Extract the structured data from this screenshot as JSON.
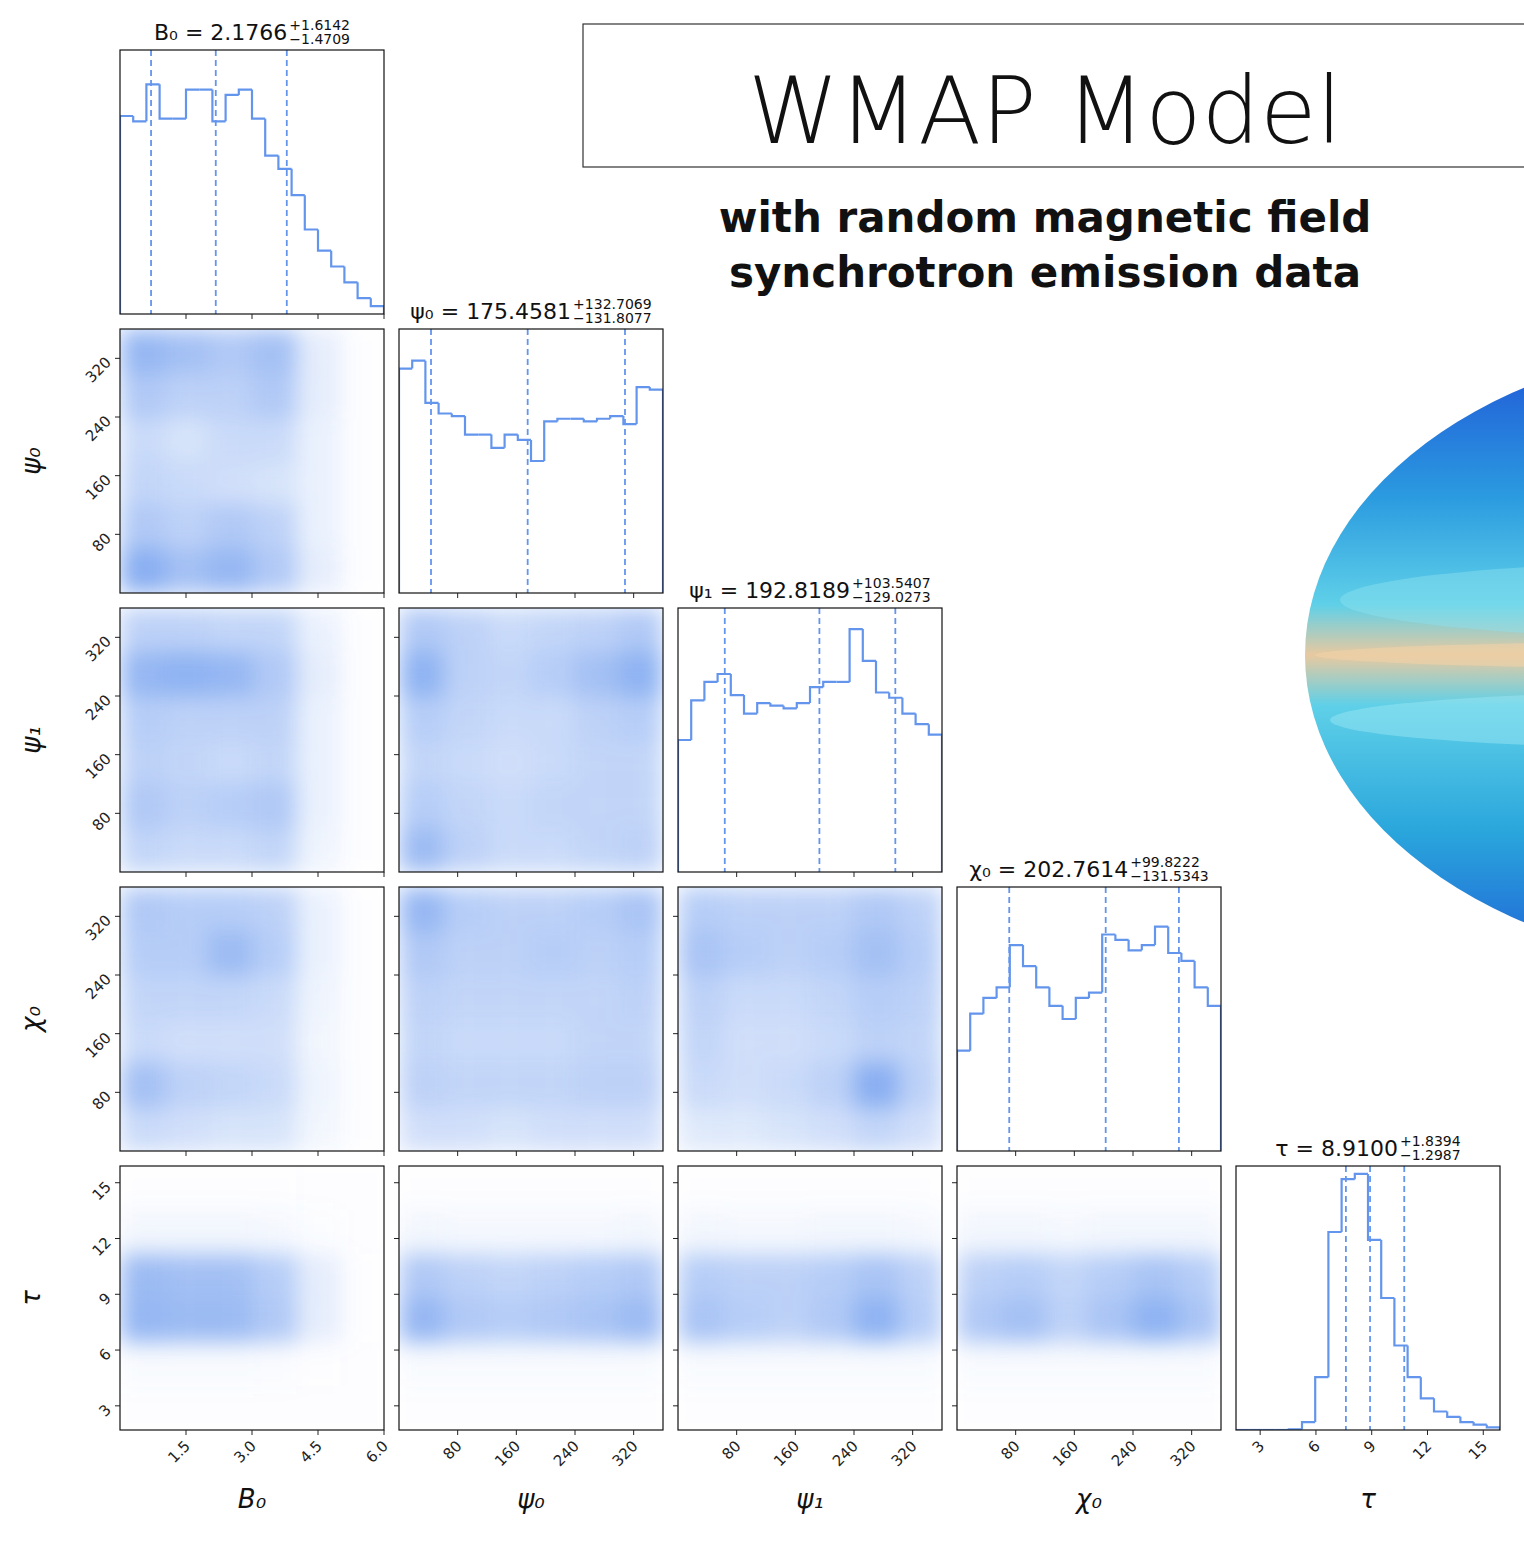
{
  "chart_data": {
    "type": "corner",
    "title": "WMAP Model",
    "subtitle": [
      "with random magnetic field",
      "synchrotron emission data"
    ],
    "color": "#6495ed",
    "parameters": [
      {
        "name": "B₀",
        "title": "B₀ =",
        "median": {
          "value": 2.1766,
          "label": "2.1766"
        },
        "err_plus": {
          "value": 1.6142,
          "label": "+1.6142"
        },
        "err_minus": {
          "value": -1.4709,
          "label": "−1.4709"
        },
        "lim": [
          0,
          6
        ],
        "ticks": [
          1.5,
          {
            "value": 3,
            "label": "3.0"
          },
          4.5,
          {
            "value": 6,
            "label": "6.0"
          }
        ],
        "bins": [
          0,
          0.3,
          0.6,
          0.9,
          1.2,
          1.5,
          1.8,
          2.1,
          2.4,
          2.7,
          3,
          3.3,
          3.6,
          3.9,
          4.2,
          4.5,
          4.8,
          5.1,
          5.4,
          5.7,
          6
        ],
        "counts": [
          0.75,
          0.73,
          0.87,
          0.74,
          0.74,
          0.85,
          0.85,
          0.73,
          0.83,
          0.85,
          0.74,
          0.6,
          0.55,
          0.45,
          0.32,
          0.24,
          0.18,
          0.12,
          0.06,
          0.03
        ],
        "ylim": [
          0,
          1
        ]
      },
      {
        "name": "ψ₀",
        "title": "ψ₀ =",
        "median": {
          "value": 175.4581,
          "label": "175.4581"
        },
        "err_plus": {
          "value": 132.7069,
          "label": "+132.7069"
        },
        "err_minus": {
          "value": -131.8077,
          "label": "−131.8077"
        },
        "lim": [
          0,
          360
        ],
        "ticks": [
          80,
          160,
          240,
          320
        ],
        "bins": [
          0,
          18,
          36,
          54,
          72,
          90,
          108,
          126,
          144,
          162,
          180,
          198,
          216,
          234,
          252,
          270,
          288,
          306,
          324,
          342,
          360
        ],
        "counts": [
          0.85,
          0.88,
          0.72,
          0.68,
          0.67,
          0.6,
          0.6,
          0.55,
          0.6,
          0.58,
          0.5,
          0.65,
          0.66,
          0.66,
          0.65,
          0.66,
          0.67,
          0.64,
          0.78,
          0.77
        ],
        "ylim": [
          0,
          1
        ]
      },
      {
        "name": "ψ₁",
        "title": "ψ₁ =",
        "median": {
          "value": 192.8189,
          "label": "192.8189"
        },
        "err_plus": {
          "value": 103.5407,
          "label": "+103.5407"
        },
        "err_minus": {
          "value": -129.0273,
          "label": "−129.0273"
        },
        "lim": [
          0,
          360
        ],
        "ticks": [
          80,
          160,
          240,
          320
        ],
        "bins": [
          0,
          18,
          36,
          54,
          72,
          90,
          108,
          126,
          144,
          162,
          180,
          198,
          216,
          234,
          252,
          270,
          288,
          306,
          324,
          342,
          360
        ],
        "counts": [
          0.5,
          0.65,
          0.72,
          0.75,
          0.67,
          0.6,
          0.64,
          0.63,
          0.62,
          0.64,
          0.7,
          0.72,
          0.72,
          0.92,
          0.8,
          0.68,
          0.66,
          0.6,
          0.56,
          0.52
        ],
        "ylim": [
          0,
          1
        ]
      },
      {
        "name": "χ₀",
        "title": "χ₀ =",
        "median": {
          "value": 202.7614,
          "label": "202.7614"
        },
        "err_plus": {
          "value": 99.8222,
          "label": "+99.8222"
        },
        "err_minus": {
          "value": -131.5343,
          "label": "−131.5343"
        },
        "lim": [
          0,
          360
        ],
        "ticks": [
          80,
          160,
          240,
          320
        ],
        "bins": [
          0,
          18,
          36,
          54,
          72,
          90,
          108,
          126,
          144,
          162,
          180,
          198,
          216,
          234,
          252,
          270,
          288,
          306,
          324,
          342,
          360
        ],
        "counts": [
          0.38,
          0.52,
          0.58,
          0.62,
          0.78,
          0.7,
          0.62,
          0.55,
          0.5,
          0.58,
          0.6,
          0.82,
          0.8,
          0.76,
          0.78,
          0.85,
          0.75,
          0.72,
          0.62,
          0.55
        ],
        "ylim": [
          0,
          1
        ]
      },
      {
        "name": "τ",
        "title": "τ =",
        "median": {
          "value": 8.91,
          "label": "8.9100"
        },
        "err_plus": {
          "value": 1.8394,
          "label": "+1.8394"
        },
        "err_minus": {
          "value": -1.2987,
          "label": "−1.2987"
        },
        "lim": [
          1.7,
          15.9
        ],
        "ticks": [
          3,
          6,
          9,
          12,
          15
        ],
        "bins": [
          1.7,
          2.41,
          3.12,
          3.83,
          4.54,
          5.25,
          5.96,
          6.67,
          7.38,
          8.09,
          8.8,
          9.51,
          10.22,
          10.93,
          11.64,
          12.35,
          13.06,
          13.77,
          14.48,
          15.19,
          15.9
        ],
        "counts": [
          0,
          0,
          0,
          0,
          0.002,
          0.03,
          0.2,
          0.75,
          0.95,
          0.97,
          0.72,
          0.5,
          0.32,
          0.2,
          0.12,
          0.07,
          0.05,
          0.03,
          0.02,
          0.01
        ],
        "ylim": [
          0,
          1
        ]
      }
    ],
    "densities": [
      [],
      [
        [
          [
            0.8,
            0.7,
            0.6,
            0.7,
            0.2,
            0.02
          ],
          [
            0.6,
            0.5,
            0.5,
            0.6,
            0.2,
            0.02
          ],
          [
            0.4,
            0.3,
            0.4,
            0.4,
            0.15,
            0.02
          ],
          [
            0.45,
            0.4,
            0.35,
            0.3,
            0.15,
            0.02
          ],
          [
            0.6,
            0.5,
            0.6,
            0.5,
            0.15,
            0.02
          ],
          [
            0.9,
            0.7,
            0.8,
            0.6,
            0.2,
            0.02
          ]
        ]
      ],
      [
        [
          [
            0.5,
            0.5,
            0.45,
            0.45,
            0.15,
            0.02
          ],
          [
            0.8,
            0.85,
            0.8,
            0.6,
            0.2,
            0.02
          ],
          [
            0.55,
            0.5,
            0.5,
            0.5,
            0.15,
            0.02
          ],
          [
            0.5,
            0.45,
            0.4,
            0.45,
            0.15,
            0.02
          ],
          [
            0.6,
            0.5,
            0.55,
            0.6,
            0.15,
            0.02
          ],
          [
            0.45,
            0.4,
            0.4,
            0.45,
            0.12,
            0.02
          ]
        ],
        [
          [
            0.6,
            0.5,
            0.4,
            0.45,
            0.5,
            0.6
          ],
          [
            0.85,
            0.5,
            0.45,
            0.55,
            0.7,
            0.85
          ],
          [
            0.55,
            0.45,
            0.4,
            0.4,
            0.5,
            0.55
          ],
          [
            0.45,
            0.4,
            0.35,
            0.4,
            0.45,
            0.45
          ],
          [
            0.55,
            0.45,
            0.4,
            0.45,
            0.45,
            0.45
          ],
          [
            0.75,
            0.5,
            0.4,
            0.4,
            0.45,
            0.5
          ]
        ]
      ],
      [
        [
          [
            0.6,
            0.55,
            0.55,
            0.5,
            0.15,
            0.02
          ],
          [
            0.55,
            0.55,
            0.75,
            0.55,
            0.15,
            0.02
          ],
          [
            0.45,
            0.45,
            0.45,
            0.4,
            0.12,
            0.02
          ],
          [
            0.4,
            0.35,
            0.35,
            0.35,
            0.1,
            0.02
          ],
          [
            0.7,
            0.5,
            0.45,
            0.4,
            0.12,
            0.02
          ],
          [
            0.4,
            0.35,
            0.3,
            0.3,
            0.1,
            0.02
          ]
        ],
        [
          [
            0.8,
            0.55,
            0.5,
            0.5,
            0.55,
            0.65
          ],
          [
            0.6,
            0.5,
            0.5,
            0.55,
            0.5,
            0.55
          ],
          [
            0.5,
            0.45,
            0.45,
            0.45,
            0.45,
            0.5
          ],
          [
            0.45,
            0.4,
            0.4,
            0.4,
            0.45,
            0.45
          ],
          [
            0.5,
            0.45,
            0.45,
            0.45,
            0.5,
            0.5
          ],
          [
            0.35,
            0.35,
            0.3,
            0.35,
            0.35,
            0.35
          ]
        ],
        [
          [
            0.55,
            0.5,
            0.5,
            0.5,
            0.6,
            0.5
          ],
          [
            0.65,
            0.55,
            0.5,
            0.55,
            0.7,
            0.55
          ],
          [
            0.5,
            0.4,
            0.4,
            0.45,
            0.55,
            0.5
          ],
          [
            0.45,
            0.35,
            0.35,
            0.4,
            0.5,
            0.45
          ],
          [
            0.4,
            0.35,
            0.4,
            0.5,
            0.9,
            0.5
          ],
          [
            0.25,
            0.25,
            0.3,
            0.35,
            0.45,
            0.35
          ]
        ]
      ],
      [
        [
          [
            0.02,
            0.02,
            0.02,
            0.02,
            0.01,
            0.01
          ],
          [
            0.1,
            0.1,
            0.1,
            0.08,
            0.03,
            0.01
          ],
          [
            0.75,
            0.7,
            0.7,
            0.55,
            0.2,
            0.02
          ],
          [
            0.8,
            0.75,
            0.75,
            0.6,
            0.2,
            0.02
          ],
          [
            0.05,
            0.05,
            0.05,
            0.04,
            0.02,
            0.01
          ],
          [
            0.01,
            0.01,
            0.01,
            0.01,
            0.01,
            0.01
          ]
        ],
        [
          [
            0.02,
            0.02,
            0.02,
            0.02,
            0.02,
            0.02
          ],
          [
            0.1,
            0.08,
            0.08,
            0.08,
            0.08,
            0.1
          ],
          [
            0.6,
            0.5,
            0.45,
            0.5,
            0.55,
            0.6
          ],
          [
            0.8,
            0.6,
            0.55,
            0.6,
            0.65,
            0.75
          ],
          [
            0.05,
            0.05,
            0.05,
            0.05,
            0.05,
            0.05
          ],
          [
            0.01,
            0.01,
            0.01,
            0.01,
            0.01,
            0.01
          ]
        ],
        [
          [
            0.02,
            0.02,
            0.02,
            0.02,
            0.02,
            0.02
          ],
          [
            0.1,
            0.08,
            0.08,
            0.1,
            0.1,
            0.08
          ],
          [
            0.55,
            0.5,
            0.5,
            0.55,
            0.65,
            0.5
          ],
          [
            0.65,
            0.55,
            0.5,
            0.6,
            0.85,
            0.55
          ],
          [
            0.05,
            0.05,
            0.05,
            0.05,
            0.05,
            0.05
          ],
          [
            0.01,
            0.01,
            0.01,
            0.01,
            0.01,
            0.01
          ]
        ],
        [
          [
            0.02,
            0.02,
            0.02,
            0.02,
            0.02,
            0.02
          ],
          [
            0.1,
            0.1,
            0.08,
            0.1,
            0.1,
            0.1
          ],
          [
            0.5,
            0.55,
            0.45,
            0.55,
            0.65,
            0.55
          ],
          [
            0.6,
            0.7,
            0.5,
            0.65,
            0.85,
            0.65
          ],
          [
            0.05,
            0.05,
            0.05,
            0.05,
            0.05,
            0.05
          ],
          [
            0.01,
            0.01,
            0.01,
            0.01,
            0.01,
            0.01
          ]
        ]
      ]
    ]
  }
}
